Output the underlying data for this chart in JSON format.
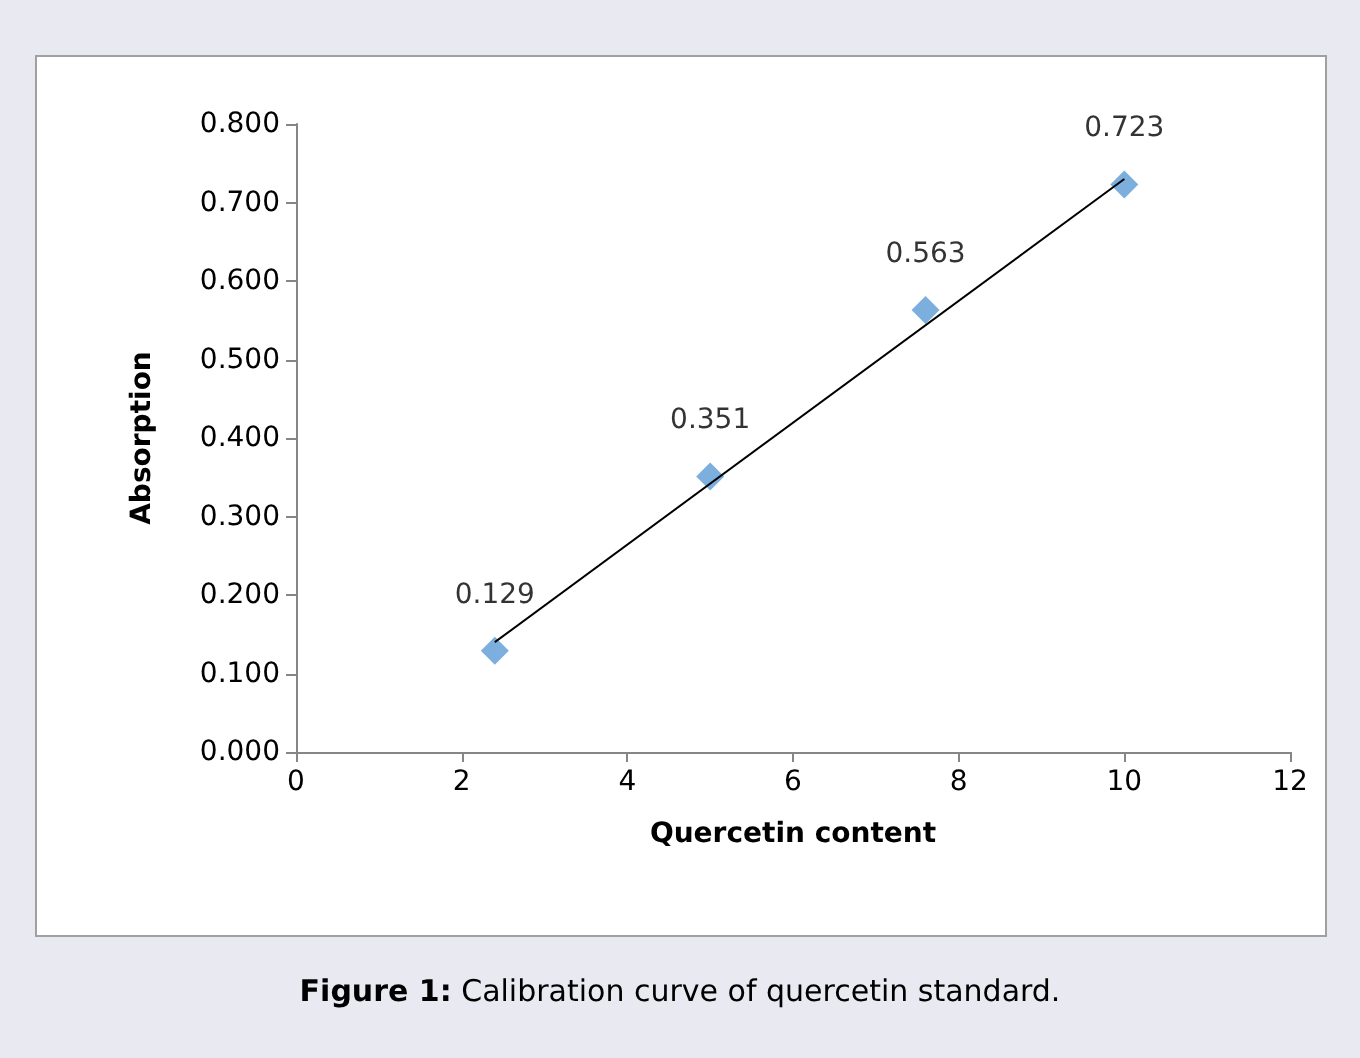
{
  "chart_data": {
    "type": "scatter",
    "xlabel": "Quercetin content",
    "ylabel": "Absorption",
    "annotations": [
      "Figure 1: Calibration curve of quercetin standard."
    ],
    "xlim": [
      0,
      12
    ],
    "xticks": [
      0,
      2,
      4,
      6,
      8,
      10,
      12
    ],
    "ylim": [
      0,
      0.8
    ],
    "yticks": [
      {
        "value": 0,
        "label": "0.000"
      },
      {
        "value": 0.1,
        "label": "0.100"
      },
      {
        "value": 0.2,
        "label": "0.200"
      },
      {
        "value": 0.3,
        "label": "0.300"
      },
      {
        "value": 0.4,
        "label": "0.400"
      },
      {
        "value": 0.5,
        "label": "0.500"
      },
      {
        "value": 0.6,
        "label": "0.600"
      },
      {
        "value": 0.7,
        "label": "0.700"
      },
      {
        "value": 0.8,
        "label": "0.800"
      }
    ],
    "marker": "diamond",
    "series": [
      {
        "color": "#5b9bd5",
        "x": [
          2.4,
          5,
          7.6,
          10
        ],
        "values": [
          0.129,
          0.351,
          0.563,
          0.723
        ],
        "value_labels": [
          "0.129",
          "0.351",
          "0.563",
          "0.723"
        ]
      },
      {
        "type": "line",
        "color": "#000000",
        "marker": "none",
        "x": [
          2.4,
          10
        ],
        "values": [
          0.14,
          0.73
        ]
      }
    ]
  }
}
